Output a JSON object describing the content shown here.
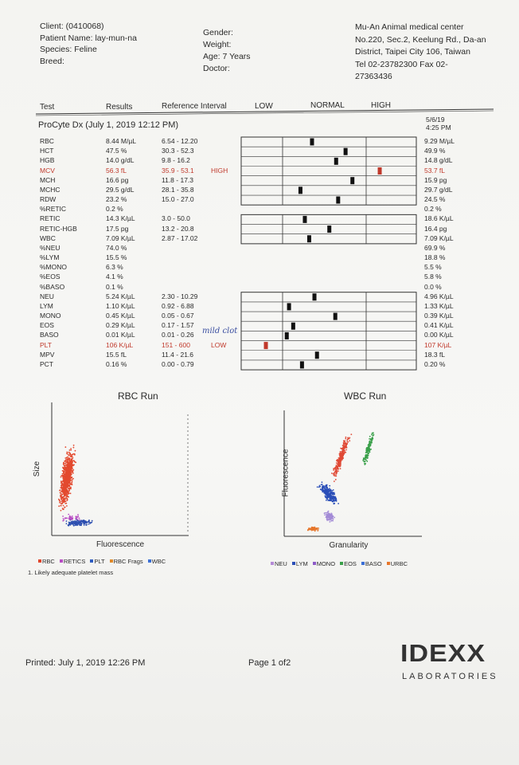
{
  "header": {
    "client": [
      "Client: (0410068)",
      "Patient Name: lay-mun-na",
      "Species: Feline",
      "Breed:"
    ],
    "patient": [
      "Gender:",
      "Weight:",
      "Age: 7 Years",
      "Doctor:"
    ],
    "clinic": [
      "Mu-An Animal medical center",
      "No.220, Sec.2, Keelung Rd., Da-an",
      "District, Taipei City 106, Taiwan",
      "Tel 02-23782300  Fax 02-",
      "27363436"
    ]
  },
  "columns": [
    "Test",
    "Results",
    "Reference Interval",
    "LOW",
    "NORMAL",
    "HIGH"
  ],
  "run": {
    "title": "ProCyte Dx (July 1, 2019 12:12 PM)",
    "prev_date": "5/6/19",
    "prev_time": "4:25 PM"
  },
  "rows": [
    {
      "test": "RBC",
      "result": "8.44 M/µL",
      "reference": "6.54 - 12.20",
      "previous": "9.29 M/µL"
    },
    {
      "test": "HCT",
      "result": "47.5 %",
      "reference": "30.3 - 52.3",
      "previous": "49.9 %"
    },
    {
      "test": "HGB",
      "result": "14.0 g/dL",
      "reference": "9.8 - 16.2",
      "previous": "14.8 g/dL"
    },
    {
      "test": "MCV",
      "result": "56.3 fL",
      "reference": "35.9 - 53.1",
      "flag": "HIGH",
      "previous": "53.7 fL"
    },
    {
      "test": "MCH",
      "result": "16.6 pg",
      "reference": "11.8 - 17.3",
      "previous": "15.9 pg"
    },
    {
      "test": "MCHC",
      "result": "29.5 g/dL",
      "reference": "28.1 - 35.8",
      "previous": "29.7 g/dL"
    },
    {
      "test": "RDW",
      "result": "23.2 %",
      "reference": "15.0 - 27.0",
      "previous": "24.5 %"
    },
    {
      "test": "%RETIC",
      "result": "0.2 %",
      "previous": "0.2 %"
    },
    {
      "test": "RETIC",
      "result": "14.3 K/µL",
      "reference": "3.0 - 50.0",
      "previous": "18.6 K/µL"
    },
    {
      "test": "RETIC-HGB",
      "result": "17.5 pg",
      "reference": "13.2 - 20.8",
      "previous": "16.4 pg"
    },
    {
      "test": "WBC",
      "result": "7.09 K/µL",
      "reference": "2.87 - 17.02",
      "previous": "7.09 K/µL"
    },
    {
      "test": "%NEU",
      "result": "74.0 %",
      "previous": "69.9 %"
    },
    {
      "test": "%LYM",
      "result": "15.5 %",
      "previous": "18.8 %"
    },
    {
      "test": "%MONO",
      "result": "6.3 %",
      "previous": "5.5 %"
    },
    {
      "test": "%EOS",
      "result": "4.1 %",
      "previous": "5.8 %"
    },
    {
      "test": "%BASO",
      "result": "0.1 %",
      "previous": "0.0 %"
    },
    {
      "test": "NEU",
      "result": "5.24 K/µL",
      "reference": "2.30 - 10.29",
      "previous": "4.96 K/µL"
    },
    {
      "test": "LYM",
      "result": "1.10 K/µL",
      "reference": "0.92 - 6.88",
      "previous": "1.33 K/µL"
    },
    {
      "test": "MONO",
      "result": "0.45 K/µL",
      "reference": "0.05 - 0.67",
      "previous": "0.39 K/µL"
    },
    {
      "test": "EOS",
      "result": "0.29 K/µL",
      "reference": "0.17 - 1.57",
      "previous": "0.41 K/µL"
    },
    {
      "test": "BASO",
      "result": "0.01 K/µL",
      "reference": "0.01 - 0.26",
      "previous": "0.00 K/µL"
    },
    {
      "test": "PLT",
      "result": "106 K/µL",
      "reference": "151 - 600",
      "flag": "LOW",
      "previous": "107 K/µL"
    },
    {
      "test": "MPV",
      "result": "15.5 fL",
      "reference": "11.4 - 21.6",
      "previous": "18.3 fL"
    },
    {
      "test": "PCT",
      "result": "0.16 %",
      "reference": "0.00 - 0.79",
      "previous": "0.20 %"
    }
  ],
  "annotation": "mild clot",
  "charts": [
    {
      "title": "RBC Run",
      "y_label": "Size",
      "x_label": "Fluorescence",
      "legend": [
        "RBC",
        "RETICS",
        "PLT",
        "RBC Frags",
        "WBC"
      ]
    },
    {
      "title": "WBC Run",
      "y_label": "Fluorescence",
      "x_label": "Granularity",
      "legend": [
        "NEU",
        "LYM",
        "MONO",
        "EOS",
        "BASO",
        "URBC"
      ]
    }
  ],
  "note": "1. Likely adequate platelet mass",
  "footer": {
    "printed": "Printed: July 1, 2019 12:26 PM",
    "page": "Page 1 of2",
    "logo": "IDEXX",
    "logo_sub": "LABORATORIES"
  }
}
